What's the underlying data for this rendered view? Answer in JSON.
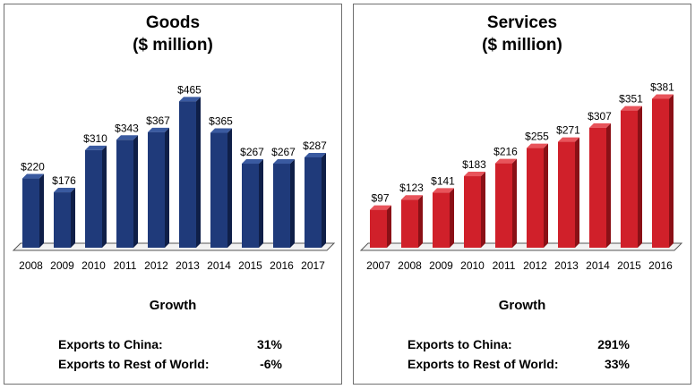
{
  "chart_data": [
    {
      "type": "bar",
      "title": "Goods",
      "subtitle": "($ million)",
      "categories": [
        "2008",
        "2009",
        "2010",
        "2011",
        "2012",
        "2013",
        "2014",
        "2015",
        "2016",
        "2017"
      ],
      "values": [
        220,
        176,
        310,
        343,
        367,
        465,
        365,
        267,
        267,
        287
      ],
      "value_labels": [
        "$220",
        "$176",
        "$310",
        "$343",
        "$367",
        "$465",
        "$365",
        "$267",
        "$267",
        "$287"
      ],
      "ylim": [
        0,
        480
      ],
      "bar_color": "#1f3a7a",
      "bar_side_color": "#0f1f48",
      "bar_top_color": "#3a5aa0",
      "grid": false,
      "legend": "none"
    },
    {
      "type": "bar",
      "title": "Services",
      "subtitle": "($ million)",
      "categories": [
        "2007",
        "2008",
        "2009",
        "2010",
        "2011",
        "2012",
        "2013",
        "2014",
        "2015",
        "2016"
      ],
      "values": [
        97,
        123,
        141,
        183,
        216,
        255,
        271,
        307,
        351,
        381
      ],
      "value_labels": [
        "$97",
        "$123",
        "$141",
        "$183",
        "$216",
        "$255",
        "$271",
        "$307",
        "$351",
        "$381"
      ],
      "ylim": [
        0,
        400
      ],
      "bar_color": "#d0202a",
      "bar_side_color": "#8a1016",
      "bar_top_color": "#e8545b",
      "grid": false,
      "legend": "none"
    }
  ],
  "goods": {
    "growth_heading": "Growth",
    "rows": [
      {
        "label": "Exports to China:",
        "value": "31%"
      },
      {
        "label": "Exports to Rest of World:",
        "value": "-6%"
      }
    ]
  },
  "services": {
    "growth_heading": "Growth",
    "rows": [
      {
        "label": "Exports to China:",
        "value": "291%"
      },
      {
        "label": "Exports to Rest of World:",
        "value": "33%"
      }
    ]
  }
}
